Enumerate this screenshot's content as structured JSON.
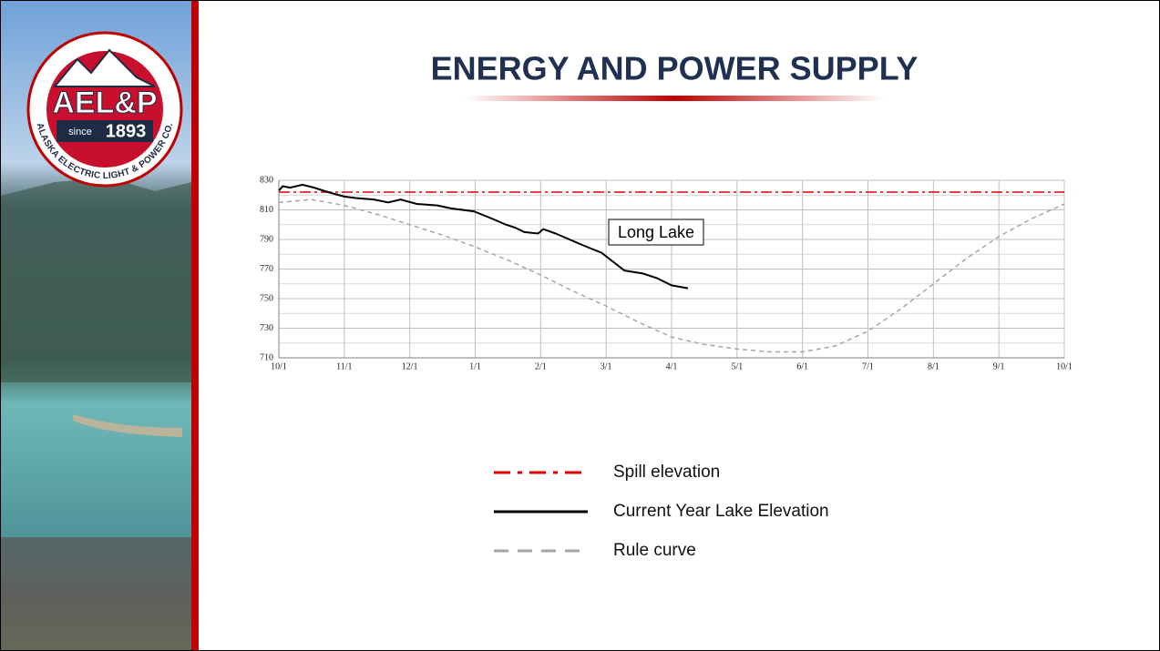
{
  "slide": {
    "logo": {
      "name": "AEL&P",
      "since": "since",
      "year": "1893",
      "company": "ALASKA ELECTRIC LIGHT & POWER CO."
    }
  },
  "chart_data": {
    "type": "line",
    "title": "ENERGY AND POWER SUPPLY",
    "annotation": "Long Lake",
    "xlim": [
      0,
      12
    ],
    "xticks": [
      {
        "value": 0,
        "label": "10/1"
      },
      {
        "value": 1,
        "label": "11/1"
      },
      {
        "value": 2,
        "label": "12/1"
      },
      {
        "value": 3,
        "label": "1/1"
      },
      {
        "value": 4,
        "label": "2/1"
      },
      {
        "value": 5,
        "label": "3/1"
      },
      {
        "value": 6,
        "label": "4/1"
      },
      {
        "value": 7,
        "label": "5/1"
      },
      {
        "value": 8,
        "label": "6/1"
      },
      {
        "value": 9,
        "label": "7/1"
      },
      {
        "value": 10,
        "label": "8/1"
      },
      {
        "value": 11,
        "label": "9/1"
      },
      {
        "value": 12,
        "label": "10/1"
      }
    ],
    "ylim": [
      710,
      830
    ],
    "yticks": [
      710,
      730,
      750,
      770,
      790,
      810,
      830
    ],
    "ygrid_minor": [
      720,
      740,
      760,
      780,
      800,
      820
    ],
    "grid": true,
    "series": [
      {
        "name": "Spill elevation",
        "color": "#e00000",
        "dash": "dash-dot",
        "x": [
          0,
          12
        ],
        "values": [
          822,
          822
        ]
      },
      {
        "name": "Current Year Lake Elevation",
        "color": "#000000",
        "dash": "solid",
        "x": [
          0,
          0.06,
          0.17,
          0.36,
          0.54,
          0.75,
          1,
          1.17,
          1.45,
          1.67,
          1.86,
          2.11,
          2.42,
          2.63,
          2.98,
          3.26,
          3.47,
          3.61,
          3.75,
          3.96,
          4.04,
          4.23,
          4.44,
          4.65,
          4.93,
          5.28,
          5.56,
          5.77,
          6,
          6.25
        ],
        "values": [
          823,
          826,
          825,
          827,
          825,
          822,
          819,
          818,
          817,
          815,
          817,
          814,
          813,
          811,
          809,
          804,
          800,
          798,
          795,
          794,
          797,
          794,
          790,
          786,
          781,
          769,
          767,
          764,
          759,
          757
        ]
      },
      {
        "name": "Rule curve",
        "color": "#a6a6a6",
        "dash": "dash",
        "x": [
          0,
          0.5,
          1,
          1.5,
          2,
          2.5,
          3,
          3.5,
          4,
          4.5,
          5,
          5.5,
          6,
          6.5,
          7,
          7.5,
          8,
          8.5,
          9,
          9.5,
          10,
          10.5,
          11,
          11.5,
          12
        ],
        "values": [
          815,
          817,
          813,
          807,
          800,
          793,
          785,
          776,
          766,
          755,
          745,
          734,
          724,
          719,
          716,
          714,
          714,
          718,
          728,
          743,
          760,
          777,
          792,
          804,
          814
        ]
      }
    ]
  }
}
